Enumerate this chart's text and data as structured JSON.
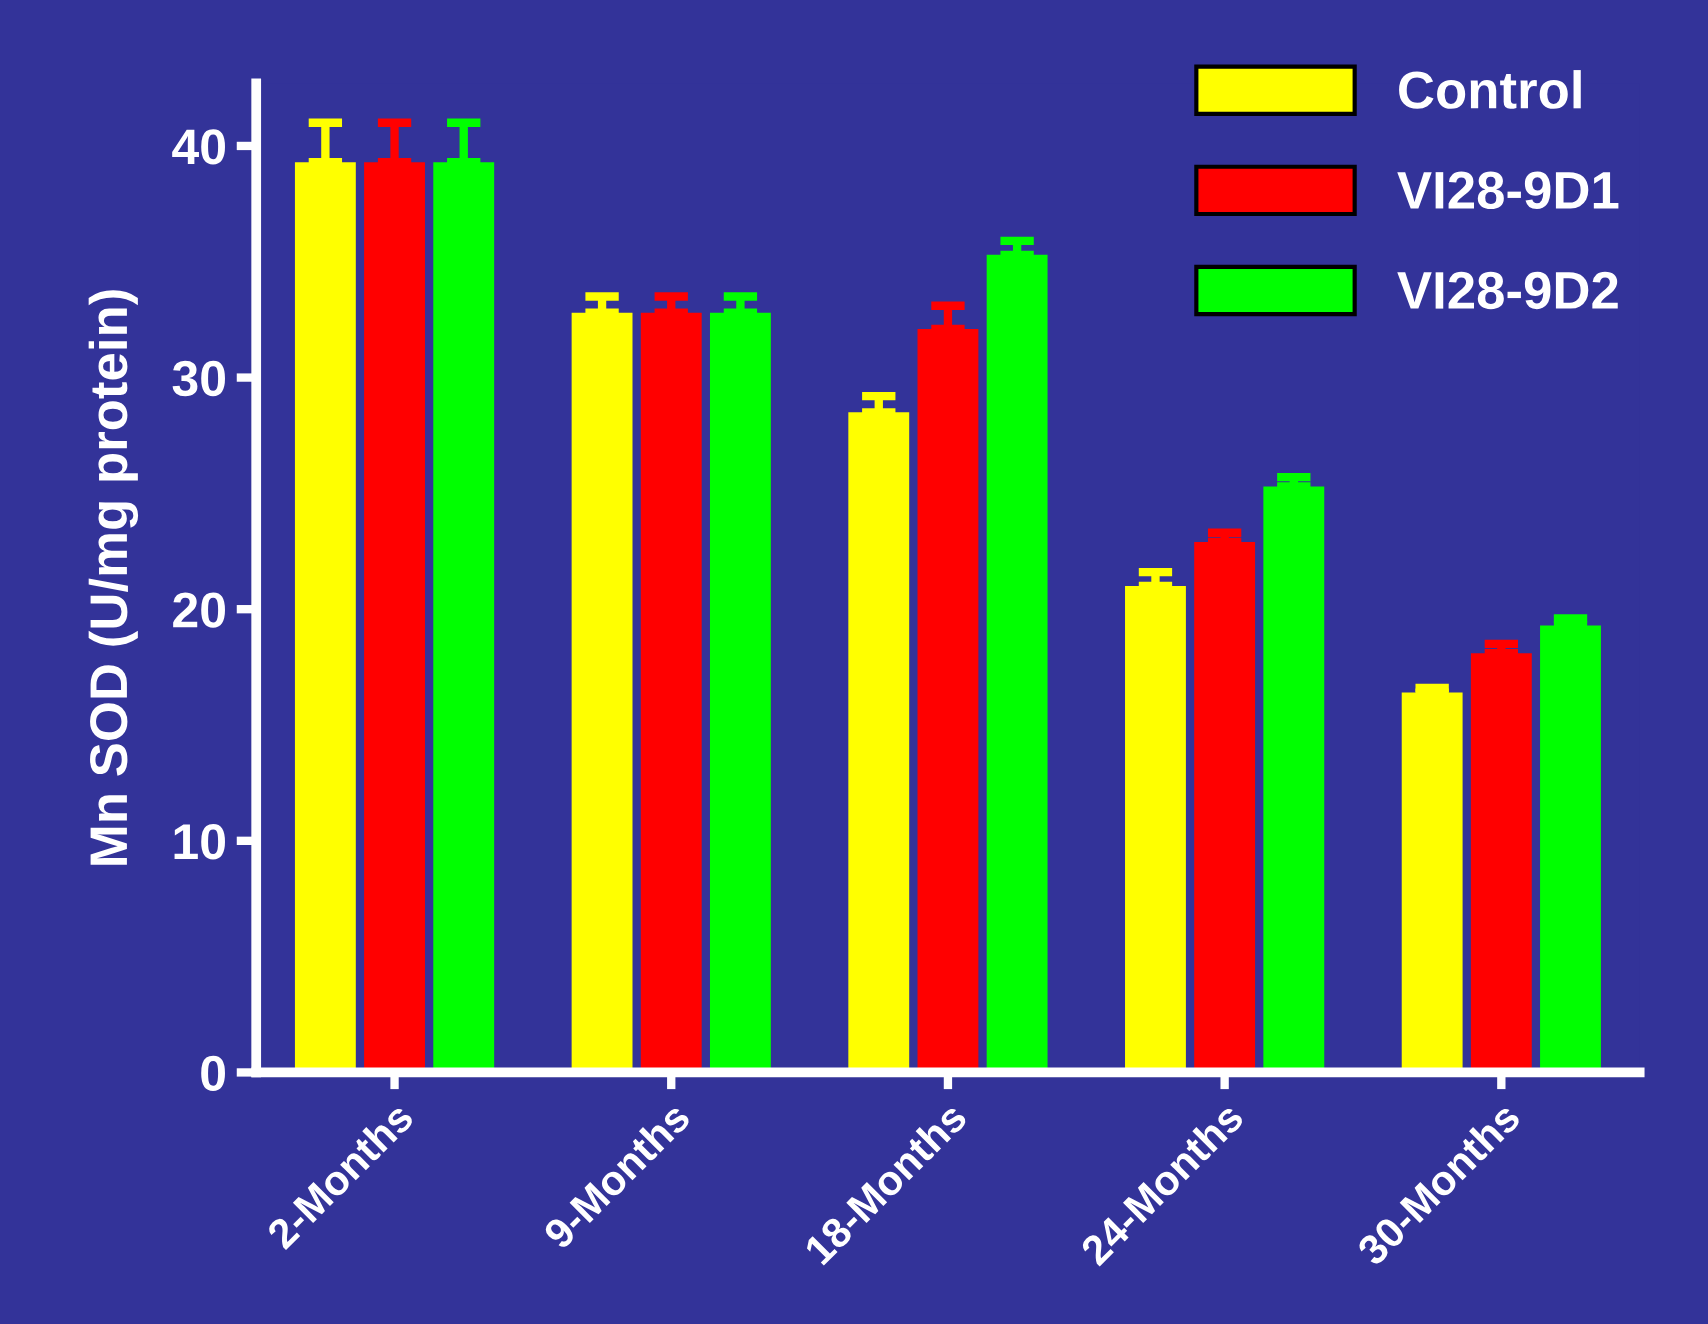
{
  "chart_data": {
    "type": "bar",
    "ylabel": "Mn SOD (U/mg protein)",
    "categories": [
      "2-Months",
      "9-Months",
      "18-Months",
      "24-Months",
      "30-Months"
    ],
    "series": [
      {
        "name": "Control",
        "color": "#ffff00",
        "values": [
          39.3,
          32.8,
          28.5,
          21.0,
          16.4
        ],
        "errors": [
          1.7,
          0.7,
          0.7,
          0.6,
          0.2
        ]
      },
      {
        "name": "VI28-9D1",
        "color": "#ff0000",
        "values": [
          39.3,
          32.8,
          32.1,
          22.9,
          18.1
        ],
        "errors": [
          1.7,
          0.7,
          1.0,
          0.4,
          0.4
        ]
      },
      {
        "name": "VI28-9D2",
        "color": "#00ff00",
        "values": [
          39.3,
          32.8,
          35.3,
          25.3,
          19.3
        ],
        "errors": [
          1.7,
          0.7,
          0.6,
          0.4,
          0.3
        ]
      }
    ],
    "ylim": [
      0,
      42.7
    ],
    "yticks": [
      0,
      10,
      20,
      30,
      40
    ],
    "grid": false,
    "legend": "top right"
  }
}
